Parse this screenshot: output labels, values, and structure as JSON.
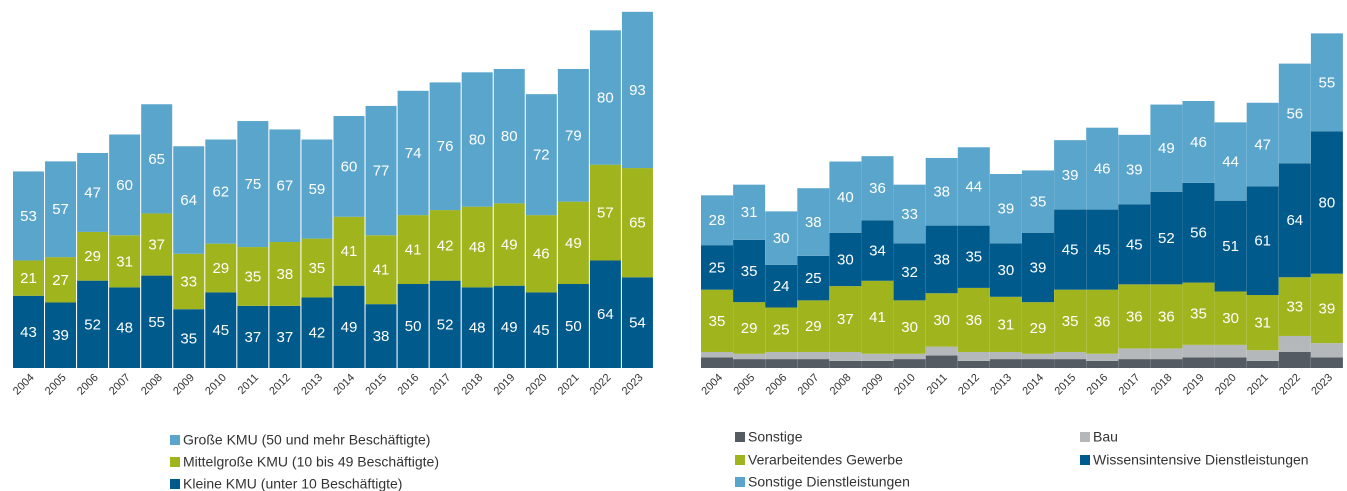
{
  "chart_data": [
    {
      "type": "bar",
      "categories": [
        "2004",
        "2005",
        "2006",
        "2007",
        "2008",
        "2009",
        "2010",
        "2011",
        "2012",
        "2013",
        "2014",
        "2015",
        "2016",
        "2017",
        "2018",
        "2019",
        "2020",
        "2021",
        "2022",
        "2023"
      ],
      "series": [
        {
          "name": "Kleine KMU (unter 10 Beschäftigte)",
          "color": "#005a8c",
          "values": [
            43,
            39,
            52,
            48,
            55,
            35,
            45,
            37,
            37,
            42,
            49,
            38,
            50,
            52,
            48,
            49,
            45,
            50,
            64,
            54
          ]
        },
        {
          "name": "Mittelgroße KMU (10 bis 49 Beschäftigte)",
          "color": "#a0b41e",
          "values": [
            21,
            27,
            29,
            31,
            37,
            33,
            29,
            35,
            38,
            35,
            41,
            41,
            41,
            42,
            48,
            49,
            46,
            49,
            57,
            65
          ]
        },
        {
          "name": "Große KMU (50 und mehr Beschäftigte)",
          "color": "#5aa5cc",
          "values": [
            53,
            57,
            47,
            60,
            65,
            64,
            62,
            75,
            67,
            59,
            60,
            77,
            74,
            76,
            80,
            80,
            72,
            79,
            80,
            93
          ]
        }
      ]
    },
    {
      "type": "bar",
      "categories": [
        "2004",
        "2005",
        "2006",
        "2007",
        "2008",
        "2009",
        "2010",
        "2011",
        "2012",
        "2013",
        "2014",
        "2015",
        "2016",
        "2017",
        "2018",
        "2019",
        "2020",
        "2021",
        "2022",
        "2023"
      ],
      "series": [
        {
          "name": "Sonstige",
          "color": "#555b63",
          "values": [
            6,
            5,
            5,
            5,
            4,
            4,
            5,
            7,
            4,
            5,
            5,
            5,
            4,
            5,
            5,
            6,
            6,
            4,
            9,
            6
          ]
        },
        {
          "name": "Bau",
          "color": "#b5b8bb",
          "values": [
            3,
            3,
            4,
            4,
            5,
            4,
            3,
            5,
            5,
            4,
            3,
            4,
            4,
            6,
            6,
            7,
            7,
            6,
            9,
            8
          ]
        },
        {
          "name": "Verarbeitendes Gewerbe",
          "color": "#a0b41e",
          "values": [
            35,
            29,
            25,
            29,
            37,
            41,
            30,
            30,
            36,
            31,
            29,
            35,
            36,
            36,
            36,
            35,
            30,
            31,
            33,
            39
          ]
        },
        {
          "name": "Wissensintensive Dienstleistungen",
          "color": "#005a8c",
          "values": [
            25,
            35,
            24,
            25,
            30,
            34,
            32,
            38,
            35,
            30,
            39,
            45,
            45,
            45,
            52,
            56,
            51,
            61,
            64,
            80
          ]
        },
        {
          "name": "Sonstige Dienstleistungen",
          "color": "#5aa5cc",
          "values": [
            28,
            31,
            30,
            38,
            40,
            36,
            33,
            38,
            44,
            39,
            35,
            39,
            46,
            39,
            49,
            46,
            44,
            47,
            56,
            55
          ]
        }
      ]
    }
  ]
}
